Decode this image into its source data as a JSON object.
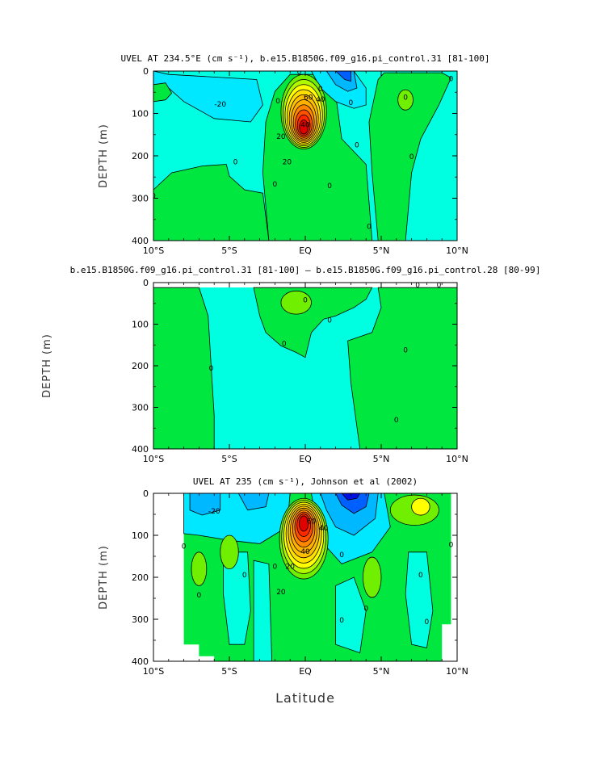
{
  "colors": {
    "cyan_light": "#00FFE0",
    "cyan": "#00E8FF",
    "sky": "#00B8FF",
    "blue": "#0060FF",
    "darkblue": "#0010E0",
    "green": "#00E840",
    "lime": "#70F000",
    "yellow": "#FFFF00",
    "orange": "#FFB000",
    "redorange": "#FF5000",
    "red": "#E00000"
  },
  "chart_data": [
    {
      "type": "heatmap",
      "title": "UVEL AT 234.5°E (cm s⁻¹), b.e15.B1850G.f09_g16.pi_control.31 [81-100]",
      "ylabel": "DEPTH (m)",
      "xlabel": "",
      "x_ticks": [
        "10°S",
        "5°S",
        "EQ",
        "5°N",
        "10°N"
      ],
      "y_ticks": [
        "0",
        "100",
        "200",
        "300",
        "400"
      ],
      "xlim": [
        -10,
        10
      ],
      "ylim": [
        400,
        0
      ],
      "contour_labels": [
        "20",
        "40",
        "60",
        "40",
        "20",
        "0",
        "-20",
        "0",
        "0",
        "0",
        "0",
        "0",
        "0",
        "0",
        "0",
        "0",
        "0",
        "0",
        "0"
      ],
      "field": {
        "core_max_approx": 100,
        "core_lat": 0,
        "core_depth": 110
      }
    },
    {
      "type": "heatmap",
      "title": "b.e15.B1850G.f09_g16.pi_control.31 [81-100] – b.e15.B1850G.f09_g16.pi_control.28 [80-99]",
      "ylabel": "DEPTH (m)",
      "xlabel": "",
      "x_ticks": [
        "10°S",
        "5°S",
        "EQ",
        "5°N",
        "10°N"
      ],
      "y_ticks": [
        "0",
        "100",
        "200",
        "300",
        "400"
      ],
      "xlim": [
        -10,
        10
      ],
      "ylim": [
        400,
        0
      ],
      "contour_labels": [
        "0",
        "0",
        "0",
        "0",
        "0",
        "0",
        "0",
        "0"
      ]
    },
    {
      "type": "heatmap",
      "title": "UVEL AT 235 (cm s⁻¹), Johnson et al (2002)",
      "ylabel": "DEPTH (m)",
      "xlabel": "Latitude",
      "x_ticks": [
        "10°S",
        "5°S",
        "EQ",
        "5°N",
        "10°N"
      ],
      "y_ticks": [
        "0",
        "100",
        "200",
        "300",
        "400"
      ],
      "xlim": [
        -10,
        10
      ],
      "ylim": [
        400,
        0
      ],
      "contour_labels": [
        "20",
        "40",
        "60",
        "40",
        "20",
        "-20",
        "0",
        "0",
        "0",
        "0",
        "0",
        "0",
        "0",
        "0",
        "0",
        "0"
      ],
      "field": {
        "core_max_approx": 100,
        "core_lat": 0,
        "core_depth": 90
      }
    }
  ]
}
